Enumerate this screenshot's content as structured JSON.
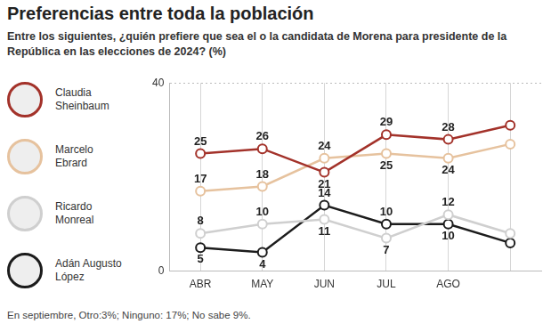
{
  "chart_data": {
    "type": "line",
    "title": "Preferencias entre toda la población",
    "subtitle": "Entre los siguientes, ¿quién prefiere que sea el o la candidata de Morena para presidente de la República en las elecciones de 2024? (%)",
    "note": "En septiembre, Otro:3%; Ninguno: 17%; No sabe 9%.",
    "categories": [
      "ABR",
      "MAY",
      "JUN",
      "JUL",
      "AGO",
      null
    ],
    "series": [
      {
        "name": "Claudia Sheinbaum",
        "color": "#a3322a",
        "values": [
          25,
          26,
          21,
          29,
          28,
          31
        ],
        "value_labels": [
          "25",
          "26",
          "21",
          "29",
          "28",
          null
        ]
      },
      {
        "name": "Marcelo Ebrard",
        "color": "#e6c29e",
        "values": [
          17,
          18,
          24,
          25,
          24,
          27
        ],
        "value_labels": [
          "17",
          "18",
          "24",
          "25",
          "24",
          null
        ]
      },
      {
        "name": "Ricardo Monreal",
        "color": "#cfcfcf",
        "values": [
          8,
          10,
          11,
          7,
          12,
          8
        ],
        "value_labels": [
          "8",
          "10",
          "11",
          "7",
          "12",
          null
        ]
      },
      {
        "name": "Adán Augusto López",
        "color": "#1c1c1c",
        "values": [
          5,
          4,
          14,
          10,
          10,
          6
        ],
        "value_labels": [
          "5",
          "4",
          "14",
          "10",
          "10",
          null
        ]
      }
    ],
    "ylim": [
      0,
      40
    ],
    "yticks": [
      0,
      40
    ],
    "grid": true,
    "legend": "left",
    "data_labels": true,
    "marker": "circle"
  }
}
